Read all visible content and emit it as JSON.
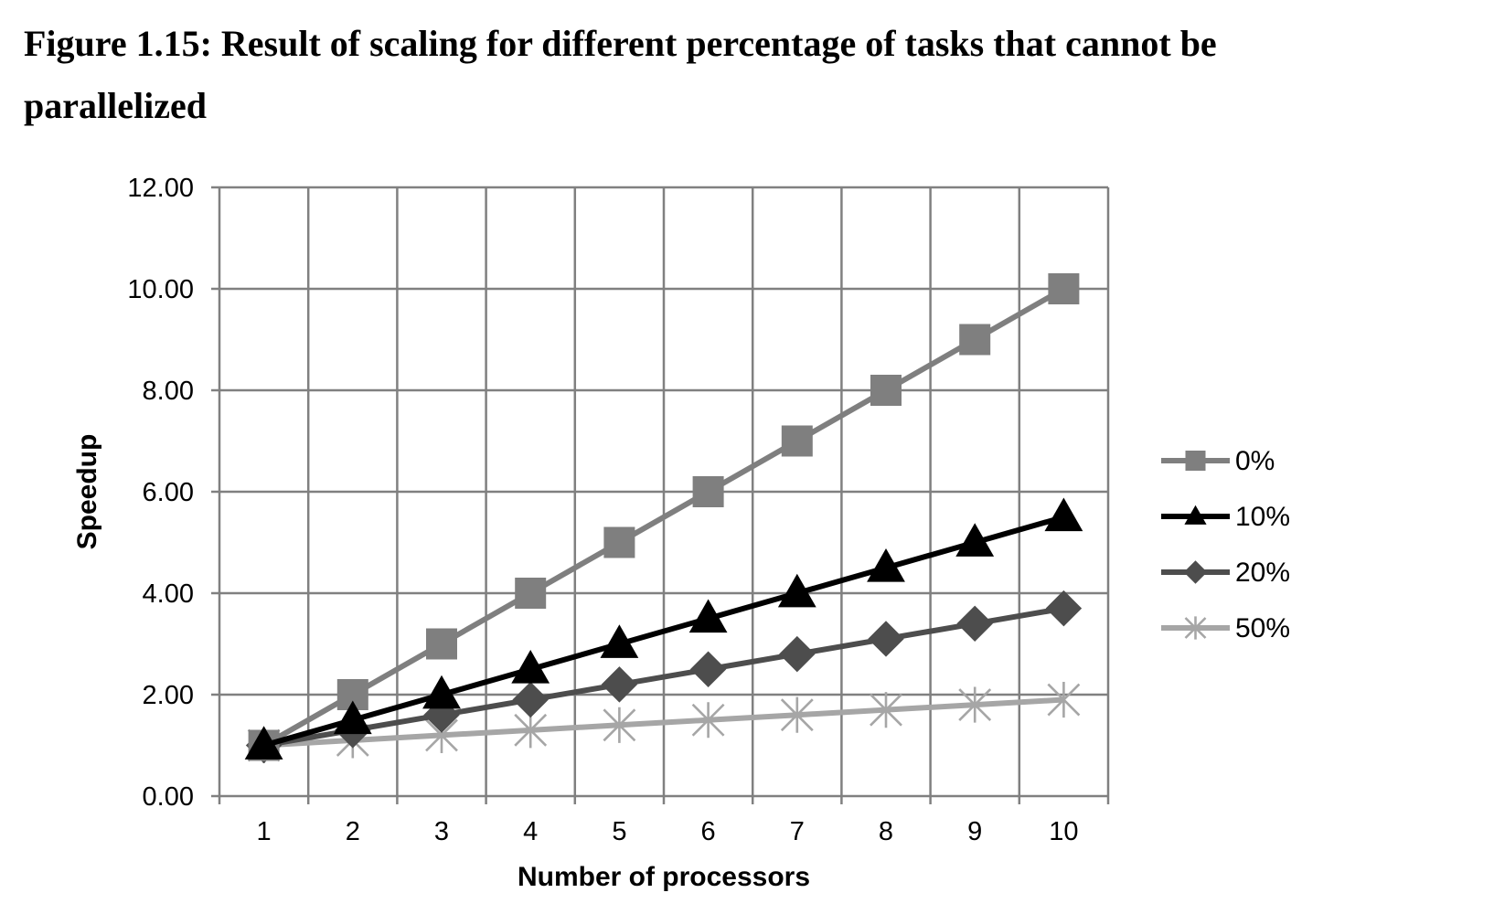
{
  "figure": {
    "title_line1": "Figure 1.15: Result of scaling for different percentage of tasks that cannot be",
    "title_line2": "parallelized"
  },
  "chart_data": {
    "type": "line",
    "title": "",
    "xlabel": "Number of processors",
    "ylabel": "Speedup",
    "categories": [
      "1",
      "2",
      "3",
      "4",
      "5",
      "6",
      "7",
      "8",
      "9",
      "10"
    ],
    "yticks": [
      "0.00",
      "2.00",
      "4.00",
      "6.00",
      "8.00",
      "10.00",
      "12.00"
    ],
    "ylim": [
      0,
      12
    ],
    "grid": true,
    "legend_position": "right",
    "series": [
      {
        "name": "0%",
        "color": "#7f7f7f",
        "marker": "square",
        "values": [
          1.0,
          2.0,
          3.0,
          4.0,
          5.0,
          6.0,
          7.0,
          8.0,
          9.0,
          10.0
        ]
      },
      {
        "name": "10%",
        "color": "#000000",
        "marker": "triangle",
        "values": [
          1.0,
          1.5,
          2.0,
          2.5,
          3.0,
          3.5,
          4.0,
          4.5,
          5.0,
          5.5
        ]
      },
      {
        "name": "20%",
        "color": "#4d4d4d",
        "marker": "diamond",
        "values": [
          1.0,
          1.3,
          1.6,
          1.9,
          2.2,
          2.5,
          2.8,
          3.1,
          3.4,
          3.7
        ]
      },
      {
        "name": "50%",
        "color": "#a6a6a6",
        "marker": "star",
        "values": [
          1.0,
          1.1,
          1.2,
          1.3,
          1.4,
          1.5,
          1.6,
          1.7,
          1.8,
          1.9
        ]
      }
    ]
  }
}
